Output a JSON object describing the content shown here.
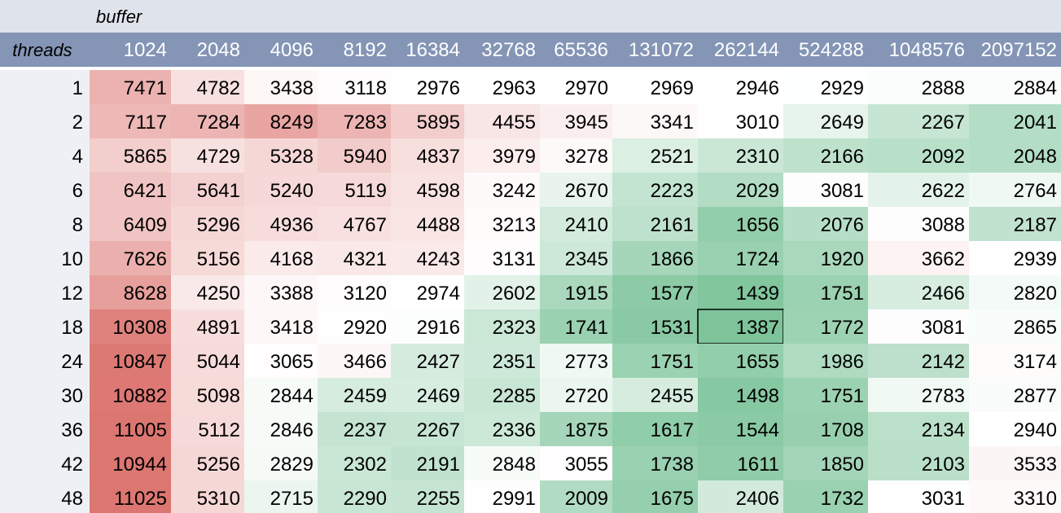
{
  "chart_data": {
    "type": "heatmap",
    "column_group_label": "buffer",
    "row_header_label": "threads",
    "columns": [
      "1024",
      "2048",
      "4096",
      "8192",
      "16384",
      "32768",
      "65536",
      "131072",
      "262144",
      "524288",
      "1048576",
      "2097152"
    ],
    "rows": [
      "1",
      "2",
      "4",
      "6",
      "8",
      "10",
      "12",
      "18",
      "24",
      "30",
      "36",
      "42",
      "48"
    ],
    "values": [
      [
        7471,
        4782,
        3438,
        3118,
        2976,
        2963,
        2970,
        2969,
        2946,
        2929,
        2888,
        2884
      ],
      [
        7117,
        7284,
        8249,
        7283,
        5895,
        4455,
        3945,
        3341,
        3010,
        2649,
        2267,
        2041
      ],
      [
        5865,
        4729,
        5328,
        5940,
        4837,
        3979,
        3278,
        2521,
        2310,
        2166,
        2092,
        2048
      ],
      [
        6421,
        5641,
        5240,
        5119,
        4598,
        3242,
        2670,
        2223,
        2029,
        3081,
        2622,
        2764
      ],
      [
        6409,
        5296,
        4936,
        4767,
        4488,
        3213,
        2410,
        2161,
        1656,
        2076,
        3088,
        2187
      ],
      [
        7626,
        5156,
        4168,
        4321,
        4243,
        3131,
        2345,
        1866,
        1724,
        1920,
        3662,
        2939
      ],
      [
        8628,
        4250,
        3388,
        3120,
        2974,
        2602,
        1915,
        1577,
        1439,
        1751,
        2466,
        2820
      ],
      [
        10308,
        4891,
        3418,
        2920,
        2916,
        2323,
        1741,
        1531,
        1387,
        1772,
        3081,
        2865
      ],
      [
        10847,
        5044,
        3065,
        3466,
        2427,
        2351,
        2773,
        1751,
        1655,
        1986,
        2142,
        3174
      ],
      [
        10882,
        5098,
        2844,
        2459,
        2469,
        2285,
        2720,
        2455,
        1498,
        1751,
        2783,
        2877
      ],
      [
        11005,
        5112,
        2846,
        2237,
        2267,
        2336,
        1875,
        1617,
        1544,
        1708,
        2134,
        2940
      ],
      [
        10944,
        5256,
        2829,
        2302,
        2191,
        2848,
        3055,
        1738,
        1611,
        1850,
        2103,
        3533
      ],
      [
        11025,
        5310,
        2715,
        2290,
        2255,
        2991,
        2009,
        1675,
        2406,
        1732,
        3031,
        3310
      ]
    ],
    "highlighted_cell": {
      "row": "18",
      "column": "262144"
    },
    "color_scale": {
      "low": "#7dc49a",
      "mid": "#ffffff",
      "high": "#dc7671",
      "mid_value": 2950
    },
    "colors": {
      "header_band": "#dfe3ec",
      "column_header_bg": "#8495b6",
      "column_header_text": "#ffffff",
      "row_header_bg": "#eef0f5"
    }
  }
}
